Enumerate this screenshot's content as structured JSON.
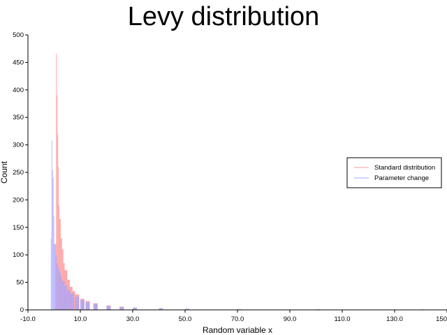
{
  "chart_data": {
    "type": "bar",
    "title": "Levy distribution",
    "xlabel": "Random variable x",
    "ylabel": "Count",
    "xlim": [
      -10,
      150
    ],
    "ylim": [
      0,
      500
    ],
    "xticks": [
      "-10.0",
      "10.0",
      "30.0",
      "50.0",
      "70.0",
      "90.0",
      "110.0",
      "130.0",
      "150"
    ],
    "yticks": [
      "0",
      "50",
      "100",
      "150",
      "200",
      "250",
      "300",
      "350",
      "400",
      "450",
      "500"
    ],
    "grid": false,
    "legend_position": "right",
    "series": [
      {
        "name": "Standard distribution",
        "color": "#ff9a9a",
        "x": [
          0.25,
          0.5,
          0.75,
          1.0,
          1.25,
          1.5,
          1.75,
          2.0,
          2.5,
          3.0,
          3.5,
          4.0,
          5.0,
          6.0,
          7.0,
          8.0,
          10.0,
          12.0,
          15.0,
          20.0,
          25.0,
          30.0,
          40.0,
          50.0,
          70.0,
          100.0,
          140.0
        ],
        "values": [
          2,
          120,
          466,
          390,
          320,
          260,
          190,
          165,
          130,
          110,
          85,
          72,
          55,
          42,
          34,
          28,
          20,
          16,
          12,
          8,
          6,
          4,
          3,
          2,
          1,
          1,
          1
        ]
      },
      {
        "name": "Parameter change",
        "color": "#a6a6ff",
        "x": [
          -1.25,
          -1.0,
          -0.75,
          -0.5,
          -0.25,
          0.0,
          0.5,
          1.0,
          1.5,
          2.0,
          2.5,
          3.0,
          4.0,
          5.0,
          6.0,
          8.0,
          10.0,
          12.0,
          15.0,
          20.0,
          25.0,
          30.0,
          40.0,
          50.0,
          70.0,
          100.0,
          140.0
        ],
        "values": [
          130,
          308,
          255,
          240,
          170,
          120,
          100,
          85,
          75,
          68,
          60,
          52,
          44,
          36,
          30,
          24,
          18,
          14,
          11,
          7,
          5,
          4,
          3,
          2,
          1,
          1,
          1
        ]
      }
    ]
  }
}
